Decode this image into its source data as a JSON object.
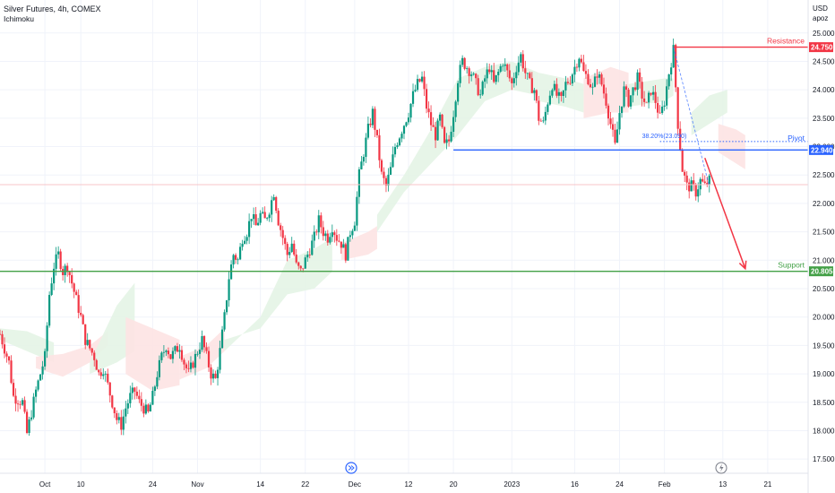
{
  "header": {
    "symbol_line": "Silver Futures, 4h, COMEX",
    "indicator": "Ichimoku",
    "currency": "USD",
    "scale_mode": "apoz"
  },
  "colors": {
    "up": "#089981",
    "down": "#f23645",
    "resistance": "#f23645",
    "pivot": "#2962ff",
    "support": "#43a047",
    "cloud_bull": "#e4f4e6",
    "cloud_bear": "#fde3e3",
    "grid": "#f0f3fa",
    "axis_text": "#131722"
  },
  "levels": {
    "resistance": {
      "label": "Resistance",
      "value": 24.75,
      "tag": "24.750"
    },
    "pivot": {
      "label": "Pivot",
      "value": 22.94,
      "tag": "22.940"
    },
    "support": {
      "label": "Support",
      "value": 20.805,
      "tag": "20.805"
    },
    "fib_label": "38.20%(23.090)",
    "fib_value": 23.09
  },
  "annotations": {
    "forecast_arrow": {
      "from_x": 157,
      "from_y": 22.8,
      "to_x": 166,
      "to_y": 20.85
    }
  },
  "icons": {
    "dividends": "bolt-icon",
    "news": "forward-icon"
  },
  "chart_data": {
    "type": "candlestick",
    "title": "Silver Futures, 4h, COMEX",
    "ylim": [
      17.25,
      25.58
    ],
    "xlim": [
      0,
      180
    ],
    "y_ticks": [
      "25.000",
      "24.500",
      "24.000",
      "23.500",
      "23.000",
      "22.500",
      "22.000",
      "21.500",
      "21.000",
      "20.500",
      "20.000",
      "19.500",
      "19.000",
      "18.500",
      "18.000",
      "17.500"
    ],
    "x_ticks": [
      {
        "label": "Oct",
        "x": 10
      },
      {
        "label": "10",
        "x": 18
      },
      {
        "label": "24",
        "x": 34
      },
      {
        "label": "Nov",
        "x": 44
      },
      {
        "label": "14",
        "x": 58
      },
      {
        "label": "22",
        "x": 68
      },
      {
        "label": "Dec",
        "x": 79
      },
      {
        "label": "12",
        "x": 91
      },
      {
        "label": "20",
        "x": 101
      },
      {
        "label": "2023",
        "x": 114
      },
      {
        "label": "16",
        "x": 128
      },
      {
        "label": "24",
        "x": 138
      },
      {
        "label": "Feb",
        "x": 148
      },
      {
        "label": "13",
        "x": 161
      },
      {
        "label": "21",
        "x": 171
      }
    ],
    "close_path": [
      [
        0,
        19.7
      ],
      [
        2,
        19.2
      ],
      [
        3,
        18.6
      ],
      [
        5,
        18.5
      ],
      [
        6,
        17.95
      ],
      [
        8,
        18.7
      ],
      [
        9,
        19.0
      ],
      [
        10,
        19.3
      ],
      [
        11,
        20.4
      ],
      [
        12,
        20.9
      ],
      [
        13,
        21.1
      ],
      [
        14,
        20.8
      ],
      [
        15,
        20.9
      ],
      [
        16,
        20.6
      ],
      [
        17,
        20.3
      ],
      [
        18,
        20.0
      ],
      [
        19,
        19.6
      ],
      [
        21,
        19.3
      ],
      [
        22,
        19.0
      ],
      [
        23,
        19.1
      ],
      [
        24,
        18.8
      ],
      [
        25,
        18.5
      ],
      [
        26,
        18.2
      ],
      [
        27,
        18.1
      ],
      [
        28,
        18.4
      ],
      [
        29,
        18.6
      ],
      [
        30,
        18.7
      ],
      [
        31,
        18.5
      ],
      [
        32,
        18.4
      ],
      [
        33,
        18.3
      ],
      [
        34,
        18.6
      ],
      [
        35,
        19.0
      ],
      [
        36,
        19.3
      ],
      [
        37,
        19.5
      ],
      [
        38,
        19.3
      ],
      [
        39,
        19.4
      ],
      [
        40,
        19.5
      ],
      [
        41,
        19.2
      ],
      [
        42,
        19.0
      ],
      [
        43,
        19.2
      ],
      [
        44,
        19.4
      ],
      [
        45,
        19.6
      ],
      [
        46,
        19.3
      ],
      [
        47,
        19.0
      ],
      [
        48,
        18.9
      ],
      [
        49,
        19.4
      ],
      [
        50,
        20.0
      ],
      [
        51,
        20.7
      ],
      [
        52,
        21.1
      ],
      [
        53,
        21.0
      ],
      [
        54,
        21.4
      ],
      [
        55,
        21.5
      ],
      [
        56,
        21.8
      ],
      [
        57,
        21.6
      ],
      [
        58,
        21.8
      ],
      [
        59,
        21.7
      ],
      [
        60,
        21.9
      ],
      [
        61,
        22.2
      ],
      [
        62,
        21.7
      ],
      [
        63,
        21.4
      ],
      [
        64,
        21.1
      ],
      [
        65,
        21.3
      ],
      [
        66,
        20.9
      ],
      [
        67,
        20.8
      ],
      [
        68,
        21.0
      ],
      [
        69,
        21.2
      ],
      [
        70,
        21.4
      ],
      [
        71,
        21.7
      ],
      [
        72,
        21.5
      ],
      [
        73,
        21.4
      ],
      [
        74,
        21.6
      ],
      [
        75,
        21.4
      ],
      [
        76,
        21.3
      ],
      [
        77,
        21.1
      ],
      [
        78,
        21.5
      ],
      [
        79,
        21.7
      ],
      [
        80,
        22.5
      ],
      [
        81,
        22.9
      ],
      [
        82,
        23.3
      ],
      [
        83,
        23.6
      ],
      [
        84,
        23.1
      ],
      [
        85,
        22.5
      ],
      [
        86,
        22.3
      ],
      [
        87,
        22.6
      ],
      [
        88,
        23.0
      ],
      [
        89,
        23.2
      ],
      [
        90,
        23.4
      ],
      [
        91,
        23.6
      ],
      [
        92,
        23.9
      ],
      [
        93,
        24.1
      ],
      [
        94,
        24.2
      ],
      [
        95,
        23.7
      ],
      [
        96,
        23.4
      ],
      [
        97,
        23.2
      ],
      [
        98,
        23.5
      ],
      [
        99,
        23.0
      ],
      [
        100,
        23.1
      ],
      [
        101,
        23.6
      ],
      [
        102,
        24.2
      ],
      [
        103,
        24.5
      ],
      [
        104,
        24.4
      ],
      [
        105,
        24.3
      ],
      [
        106,
        24.1
      ],
      [
        107,
        23.9
      ],
      [
        108,
        24.2
      ],
      [
        109,
        24.4
      ],
      [
        110,
        24.1
      ],
      [
        111,
        24.3
      ],
      [
        112,
        24.5
      ],
      [
        113,
        24.3
      ],
      [
        114,
        24.1
      ],
      [
        115,
        24.4
      ],
      [
        116,
        24.6
      ],
      [
        117,
        24.3
      ],
      [
        118,
        24.1
      ],
      [
        119,
        24.0
      ],
      [
        120,
        23.5
      ],
      [
        121,
        23.4
      ],
      [
        122,
        23.8
      ],
      [
        123,
        24.1
      ],
      [
        124,
        23.9
      ],
      [
        125,
        23.8
      ],
      [
        126,
        24.1
      ],
      [
        127,
        24.2
      ],
      [
        128,
        24.4
      ],
      [
        129,
        24.6
      ],
      [
        130,
        24.3
      ],
      [
        131,
        24.2
      ],
      [
        132,
        24.0
      ],
      [
        133,
        24.3
      ],
      [
        134,
        24.1
      ],
      [
        135,
        23.8
      ],
      [
        136,
        23.4
      ],
      [
        137,
        23.0
      ],
      [
        138,
        23.6
      ],
      [
        139,
        24.0
      ],
      [
        140,
        23.8
      ],
      [
        141,
        24.0
      ],
      [
        142,
        24.2
      ],
      [
        143,
        23.9
      ],
      [
        144,
        23.7
      ],
      [
        145,
        24.0
      ],
      [
        146,
        23.8
      ],
      [
        147,
        23.5
      ],
      [
        148,
        23.8
      ],
      [
        149,
        24.3
      ],
      [
        150,
        24.7
      ],
      [
        151,
        23.4
      ],
      [
        152,
        22.6
      ],
      [
        153,
        22.3
      ],
      [
        154,
        22.3
      ],
      [
        155,
        22.2
      ],
      [
        156,
        22.4
      ],
      [
        157,
        22.3
      ],
      [
        158,
        22.4
      ]
    ],
    "cloud_segments": [
      {
        "kind": "bull",
        "points": [
          [
            0,
            19.6
          ],
          [
            6,
            19.4
          ],
          [
            12,
            19.2
          ],
          [
            12,
            19.55
          ],
          [
            6,
            19.75
          ],
          [
            0,
            19.8
          ]
        ]
      },
      {
        "kind": "bear",
        "points": [
          [
            8,
            19.1
          ],
          [
            14,
            18.95
          ],
          [
            20,
            19.2
          ],
          [
            24,
            19.5
          ],
          [
            24,
            19.75
          ],
          [
            20,
            19.5
          ],
          [
            14,
            19.35
          ],
          [
            8,
            19.3
          ]
        ]
      },
      {
        "kind": "bull",
        "points": [
          [
            20,
            19.2
          ],
          [
            26,
            20.2
          ],
          [
            30,
            20.6
          ],
          [
            30,
            19.4
          ],
          [
            26,
            19.2
          ],
          [
            20,
            19.0
          ]
        ]
      },
      {
        "kind": "bear",
        "points": [
          [
            28,
            19.0
          ],
          [
            34,
            18.7
          ],
          [
            40,
            18.8
          ],
          [
            40,
            19.6
          ],
          [
            34,
            19.8
          ],
          [
            28,
            20.0
          ]
        ]
      },
      {
        "kind": "bear",
        "points": [
          [
            40,
            18.9
          ],
          [
            46,
            19.1
          ],
          [
            50,
            19.4
          ],
          [
            50,
            19.8
          ],
          [
            46,
            19.5
          ],
          [
            40,
            19.3
          ]
        ]
      },
      {
        "kind": "bull",
        "points": [
          [
            50,
            19.4
          ],
          [
            58,
            20.0
          ],
          [
            64,
            21.0
          ],
          [
            70,
            21.2
          ],
          [
            74,
            21.4
          ],
          [
            74,
            20.8
          ],
          [
            70,
            20.5
          ],
          [
            64,
            20.4
          ],
          [
            58,
            19.8
          ],
          [
            50,
            19.6
          ]
        ]
      },
      {
        "kind": "bear",
        "points": [
          [
            76,
            21.3
          ],
          [
            82,
            21.5
          ],
          [
            84,
            21.6
          ],
          [
            84,
            21.2
          ],
          [
            82,
            21.1
          ],
          [
            76,
            21.0
          ]
        ]
      },
      {
        "kind": "bull",
        "points": [
          [
            84,
            21.5
          ],
          [
            90,
            22.2
          ],
          [
            96,
            22.7
          ],
          [
            102,
            23.2
          ],
          [
            108,
            23.8
          ],
          [
            114,
            24.0
          ],
          [
            120,
            23.9
          ],
          [
            120,
            24.3
          ],
          [
            114,
            24.5
          ],
          [
            108,
            24.4
          ],
          [
            102,
            24.2
          ],
          [
            96,
            23.3
          ],
          [
            90,
            22.5
          ],
          [
            84,
            21.8
          ]
        ]
      },
      {
        "kind": "bull",
        "points": [
          [
            120,
            23.8
          ],
          [
            126,
            23.7
          ],
          [
            130,
            23.6
          ],
          [
            130,
            24.1
          ],
          [
            126,
            24.2
          ],
          [
            120,
            24.3
          ]
        ]
      },
      {
        "kind": "bear",
        "points": [
          [
            130,
            23.5
          ],
          [
            136,
            23.6
          ],
          [
            140,
            23.6
          ],
          [
            140,
            24.3
          ],
          [
            136,
            24.4
          ],
          [
            130,
            24.2
          ]
        ]
      },
      {
        "kind": "bull",
        "points": [
          [
            140,
            23.7
          ],
          [
            148,
            23.8
          ],
          [
            150,
            23.9
          ],
          [
            150,
            24.2
          ],
          [
            148,
            24.2
          ],
          [
            140,
            24.1
          ]
        ]
      },
      {
        "kind": "bull",
        "points": [
          [
            154,
            23.6
          ],
          [
            158,
            23.9
          ],
          [
            162,
            24.0
          ],
          [
            162,
            23.6
          ],
          [
            158,
            23.4
          ],
          [
            154,
            23.2
          ]
        ]
      },
      {
        "kind": "bear",
        "points": [
          [
            160,
            23.4
          ],
          [
            164,
            23.3
          ],
          [
            166,
            23.2
          ],
          [
            166,
            22.6
          ],
          [
            164,
            22.7
          ],
          [
            160,
            22.9
          ]
        ]
      }
    ]
  }
}
